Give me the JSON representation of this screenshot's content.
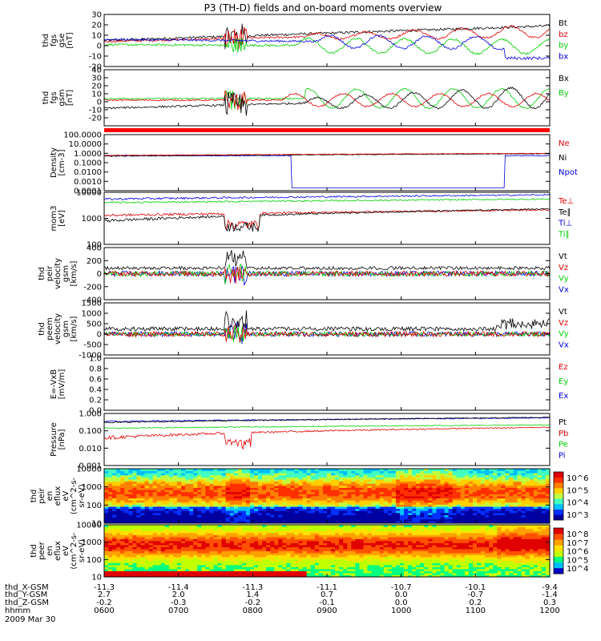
{
  "title": "P3 (TH-D) fields and on-board moments overview",
  "colors": {
    "black": "#000000",
    "red": "#e00000",
    "green": "#00d000",
    "blue": "#0000e0"
  },
  "chart_data": [
    {
      "type": "line",
      "name": "fgs_gse",
      "ylabel": [
        "thd",
        "fgs",
        "gse",
        "[nT]"
      ],
      "ylim": [
        -20,
        30
      ],
      "ticks": [
        "30",
        "20",
        "10",
        "0",
        "-10",
        "-20"
      ],
      "tick_values": [
        30,
        20,
        10,
        0,
        -10,
        -20
      ],
      "legend": [
        {
          "label": "Bt",
          "color": "#000000"
        },
        {
          "label": "bz",
          "color": "#e00000"
        },
        {
          "label": "by",
          "color": "#00d000"
        },
        {
          "label": "bx",
          "color": "#0000e0"
        }
      ]
    },
    {
      "type": "line",
      "name": "fgs_gsm",
      "ylabel": [
        "thd",
        "fgs",
        "gsm",
        "[nT]"
      ],
      "ylim": [
        -30,
        40
      ],
      "ticks": [
        "40",
        "30",
        "20",
        "10",
        "0",
        "-10",
        "-20"
      ],
      "tick_values": [
        40,
        30,
        20,
        10,
        0,
        -10,
        -20
      ],
      "legend": [
        {
          "label": "Bx",
          "color": "#000000"
        },
        {
          "label": "By",
          "color": "#00d000"
        }
      ]
    },
    {
      "type": "line",
      "name": "density",
      "scale": "log",
      "ylabel": [
        "Density",
        "[cm-3]"
      ],
      "ylim": [
        0.0001,
        100
      ],
      "ticks": [
        "100.0000",
        "10.0000",
        "1.0000",
        "0.1000",
        "0.0100",
        "0.0010",
        "0.0001"
      ],
      "tick_values": [
        100,
        10,
        1,
        0.1,
        0.01,
        0.001,
        0.0001
      ],
      "legend": [
        {
          "label": "Ne",
          "color": "#e00000"
        },
        {
          "label": "Ni",
          "color": "#000000"
        },
        {
          "label": "Npot",
          "color": "#0000e0"
        }
      ]
    },
    {
      "type": "line",
      "name": "temperature",
      "scale": "log",
      "ylabel": [
        "mom3",
        "[eV]"
      ],
      "ylim": [
        100,
        10000
      ],
      "ticks": [
        "10000",
        "1000",
        "100"
      ],
      "tick_values": [
        10000,
        1000,
        100
      ],
      "legend": [
        {
          "label": "Te⊥",
          "color": "#e00000"
        },
        {
          "label": "Te∥",
          "color": "#000000"
        },
        {
          "label": "Ti⊥",
          "color": "#0000e0"
        },
        {
          "label": "Ti∥",
          "color": "#00d000"
        }
      ]
    },
    {
      "type": "line",
      "name": "peir_velocity",
      "ylabel": [
        "thd",
        "peir",
        "velocity",
        "gsm",
        "[km/s]"
      ],
      "ylim": [
        -400,
        400
      ],
      "ticks": [
        "400",
        "200",
        "0",
        "-200",
        "-400"
      ],
      "tick_values": [
        400,
        200,
        0,
        -200,
        -400
      ],
      "legend": [
        {
          "label": "Vt",
          "color": "#000000"
        },
        {
          "label": "Vz",
          "color": "#e00000"
        },
        {
          "label": "Vy",
          "color": "#00d000"
        },
        {
          "label": "Vx",
          "color": "#0000e0"
        }
      ]
    },
    {
      "type": "line",
      "name": "peem_velocity",
      "ylabel": [
        "thd",
        "peem",
        "velocity",
        "gsm",
        "[km/s]"
      ],
      "ylim": [
        -1000,
        1500
      ],
      "ticks": [
        "1500",
        "1000",
        "500",
        "0",
        "-500",
        "-1000"
      ],
      "tick_values": [
        1500,
        1000,
        500,
        0,
        -500,
        -1000
      ],
      "legend": [
        {
          "label": "Vt",
          "color": "#000000"
        },
        {
          "label": "Vz",
          "color": "#e00000"
        },
        {
          "label": "Vy",
          "color": "#00d000"
        },
        {
          "label": "Vx",
          "color": "#0000e0"
        }
      ]
    },
    {
      "type": "line",
      "name": "efield",
      "ylabel": [
        "E=-VxB",
        "[mV/m]"
      ],
      "ylim": [
        0,
        1
      ],
      "ticks": [
        "1.0",
        "0.8",
        "0.6",
        "0.4",
        "0.2",
        "0.0"
      ],
      "tick_values": [
        1,
        0.8,
        0.6,
        0.4,
        0.2,
        0
      ],
      "legend": [
        {
          "label": "Ez",
          "color": "#e00000"
        },
        {
          "label": "Ey",
          "color": "#00d000"
        },
        {
          "label": "Ex",
          "color": "#0000e0"
        }
      ]
    },
    {
      "type": "line",
      "name": "pressure",
      "scale": "log",
      "ylabel": [
        "Pressure",
        "[nPa]"
      ],
      "ylim": [
        0.001,
        1
      ],
      "ticks": [
        "1.000",
        "0.100",
        "0.010",
        "0.001"
      ],
      "tick_values": [
        1,
        0.1,
        0.01,
        0.001
      ],
      "legend": [
        {
          "label": "Pt",
          "color": "#000000"
        },
        {
          "label": "Pb",
          "color": "#e00000"
        },
        {
          "label": "Pe",
          "color": "#00d000"
        },
        {
          "label": "Pi",
          "color": "#0000e0"
        }
      ]
    },
    {
      "type": "heatmap",
      "name": "peir_en_eflux",
      "scale": "log",
      "ylabel": [
        "thd",
        "peir",
        "en",
        "eflux",
        "eV",
        "(cm^2-s-",
        "sr-eV)"
      ],
      "ylim": [
        10,
        10000
      ],
      "ticks": [
        "10000",
        "1000",
        "100",
        "10"
      ],
      "tick_values": [
        10000,
        1000,
        100,
        10
      ],
      "colorbar": {
        "labels": [
          "10^6",
          "10^5",
          "10^4",
          "10^3"
        ],
        "values": [
          1000000,
          100000,
          10000,
          1000
        ]
      }
    },
    {
      "type": "heatmap",
      "name": "peer_en_eflux",
      "scale": "log",
      "ylabel": [
        "thd",
        "peer",
        "en",
        "eflux",
        "eV",
        "(cm^2-s-",
        "sr-eV)"
      ],
      "ylim": [
        10,
        10000
      ],
      "ticks": [
        "10000",
        "1000",
        "100",
        "10"
      ],
      "tick_values": [
        10000,
        1000,
        100,
        10
      ],
      "colorbar": {
        "labels": [
          "10^8",
          "10^7",
          "10^6",
          "10^5",
          "10^4"
        ],
        "values": [
          100000000,
          10000000,
          1000000,
          100000,
          10000
        ]
      }
    }
  ],
  "x_axis": {
    "rows": [
      {
        "label": "thd_X-GSM",
        "values": [
          "-11.3",
          "-11.4",
          "-11.3",
          "-11.1",
          "-10.7",
          "-10.1",
          "-9.4"
        ]
      },
      {
        "label": "thd_Y-GSM",
        "values": [
          "2.7",
          "2.0",
          "1.4",
          "0.7",
          "0.0",
          "-0.7",
          "-1.4"
        ]
      },
      {
        "label": "thd_Z-GSM",
        "values": [
          "-0.2",
          "-0.3",
          "-0.2",
          "-0.1",
          "0.0",
          "0.2",
          "0.3"
        ]
      },
      {
        "label": "hhmm",
        "values": [
          "0600",
          "0700",
          "0800",
          "0900",
          "1000",
          "1100",
          "1200"
        ]
      }
    ],
    "date": "2009 Mar 30",
    "range": [
      "0600",
      "1200"
    ]
  }
}
